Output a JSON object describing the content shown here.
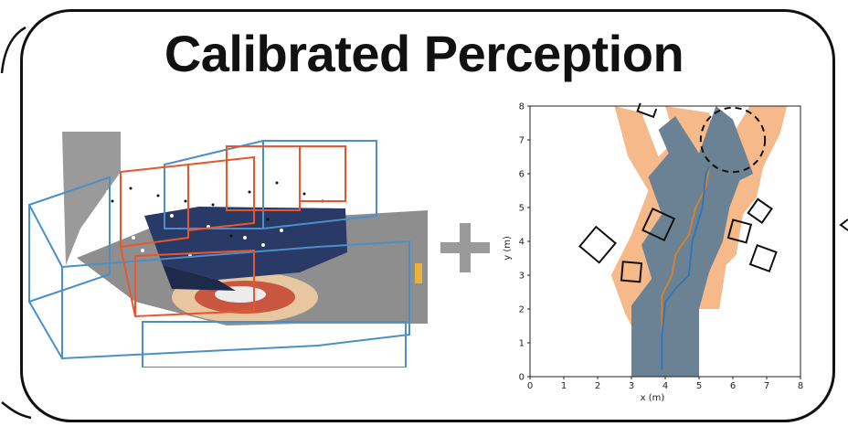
{
  "title": "Calibrated Perception",
  "colors": {
    "frame": "#111111",
    "plus": "#9a9a9a",
    "blue_box": "#4a8fc7",
    "red_box": "#e8562e",
    "region_orange": "#f5b98a",
    "region_slate": "#6b8294",
    "traj_blue": "#2f75b5",
    "traj_orange": "#d9812d"
  },
  "chart_data": {
    "type": "scatter",
    "xlabel": "x (m)",
    "ylabel": "y (m)",
    "xlim": [
      0,
      8
    ],
    "ylim": [
      0,
      8
    ],
    "xticks": [
      "0",
      "1",
      "2",
      "3",
      "4",
      "5",
      "6",
      "7",
      "8"
    ],
    "yticks": [
      "0",
      "1",
      "2",
      "3",
      "4",
      "5",
      "6",
      "7",
      "8"
    ],
    "grid": false,
    "orange_region": [
      [
        3.0,
        0
      ],
      [
        5.0,
        0
      ],
      [
        5.0,
        2.0
      ],
      [
        5.6,
        2.0
      ],
      [
        5.8,
        3.3
      ],
      [
        6.1,
        3.6
      ],
      [
        6.3,
        4.8
      ],
      [
        6.7,
        5.3
      ],
      [
        6.9,
        6.2
      ],
      [
        7.4,
        7.2
      ],
      [
        7.6,
        8.0
      ],
      [
        6.5,
        8.0
      ],
      [
        5.6,
        6.5
      ],
      [
        5.3,
        7.8
      ],
      [
        4.0,
        8.0
      ],
      [
        4.3,
        7.0
      ],
      [
        3.8,
        6.5
      ],
      [
        3.3,
        7.8
      ],
      [
        2.5,
        8.0
      ],
      [
        2.9,
        6.5
      ],
      [
        3.5,
        5.5
      ],
      [
        3.0,
        4.2
      ],
      [
        2.4,
        3.0
      ],
      [
        2.8,
        1.9
      ],
      [
        3.0,
        1.5
      ]
    ],
    "slate_region": [
      [
        3.0,
        0
      ],
      [
        5.0,
        0
      ],
      [
        5.0,
        2.0
      ],
      [
        5.3,
        3.1
      ],
      [
        5.7,
        4.0
      ],
      [
        5.9,
        5.0
      ],
      [
        6.2,
        5.8
      ],
      [
        6.6,
        6.0
      ],
      [
        6.0,
        7.6
      ],
      [
        5.5,
        8.0
      ],
      [
        5.0,
        6.6
      ],
      [
        4.3,
        7.7
      ],
      [
        3.8,
        7.3
      ],
      [
        4.1,
        6.6
      ],
      [
        3.5,
        5.9
      ],
      [
        3.9,
        4.8
      ],
      [
        3.3,
        3.9
      ],
      [
        3.6,
        2.9
      ],
      [
        3.0,
        2.1
      ]
    ],
    "path_blue": [
      [
        3.9,
        0.2
      ],
      [
        3.9,
        1.2
      ],
      [
        4.0,
        2.2
      ],
      [
        4.3,
        2.6
      ],
      [
        4.7,
        3.0
      ],
      [
        4.8,
        4.0
      ],
      [
        5.1,
        5.0
      ],
      [
        5.2,
        6.0
      ],
      [
        5.3,
        6.2
      ]
    ],
    "path_orange": [
      [
        3.9,
        0.2
      ],
      [
        3.9,
        1.3
      ],
      [
        3.9,
        2.4
      ],
      [
        4.2,
        3.0
      ],
      [
        4.3,
        3.6
      ],
      [
        4.7,
        4.2
      ],
      [
        4.9,
        5.0
      ],
      [
        5.2,
        5.6
      ],
      [
        5.3,
        6.2
      ]
    ],
    "obstacles": [
      {
        "x": 2.0,
        "y": 3.9,
        "size": 0.75,
        "angle": 40
      },
      {
        "x": 3.0,
        "y": 3.1,
        "size": 0.55,
        "angle": 5
      },
      {
        "x": 3.8,
        "y": 4.5,
        "size": 0.7,
        "angle": 25
      },
      {
        "x": 6.2,
        "y": 4.3,
        "size": 0.55,
        "angle": 15
      },
      {
        "x": 6.8,
        "y": 4.9,
        "size": 0.5,
        "angle": 35
      },
      {
        "x": 6.9,
        "y": 3.5,
        "size": 0.6,
        "angle": 20
      },
      {
        "x": 3.5,
        "y": 8.0,
        "size": 0.5,
        "angle": 20
      }
    ],
    "goal_circle": {
      "x": 6.0,
      "y": 7.0,
      "r": 0.95
    }
  }
}
